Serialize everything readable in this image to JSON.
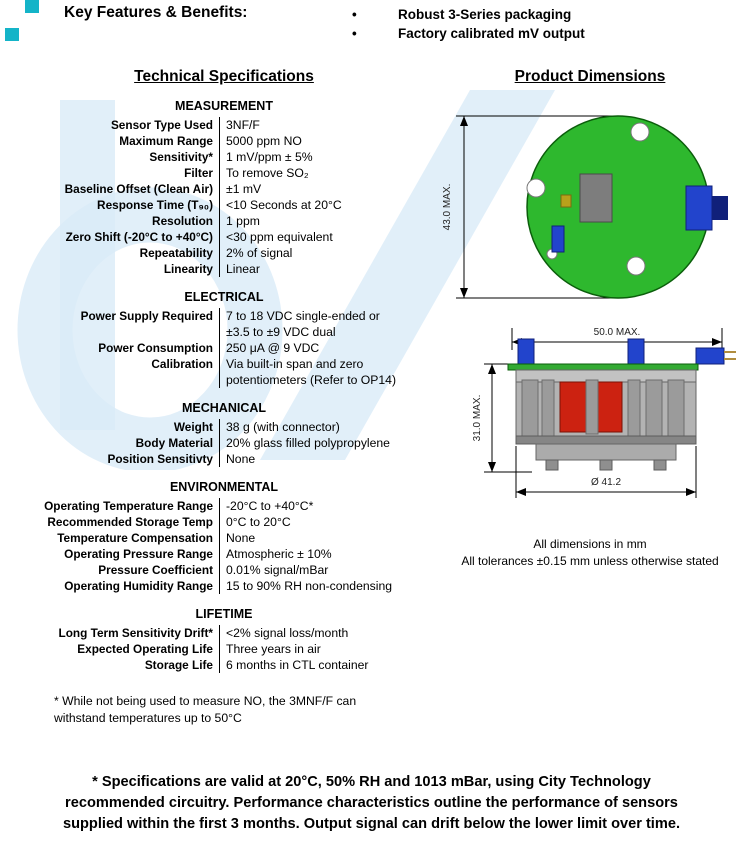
{
  "key_features": {
    "title": "Key Features & Benefits:",
    "bullets": [
      "Robust 3-Series packaging",
      "Factory calibrated mV output"
    ]
  },
  "tech_specs": {
    "title": "Technical Specifications",
    "sections": [
      {
        "heading": "MEASUREMENT",
        "rows": [
          {
            "label": "Sensor Type Used",
            "value": "3NF/F"
          },
          {
            "label": "Maximum Range",
            "value": "5000 ppm NO"
          },
          {
            "label": "Sensitivity*",
            "value": "1 mV/ppm ± 5%"
          },
          {
            "label": "Filter",
            "value": "To remove SO₂"
          },
          {
            "label": "Baseline Offset (Clean Air)",
            "value": "±1 mV"
          },
          {
            "label": "Response Time (T₉₀)",
            "value": "<10 Seconds at 20°C"
          },
          {
            "label": "Resolution",
            "value": "1 ppm"
          },
          {
            "label": "Zero Shift (-20°C to +40°C)",
            "value": "<30 ppm equivalent"
          },
          {
            "label": "Repeatability",
            "value": "2% of signal"
          },
          {
            "label": "Linearity",
            "value": "Linear"
          }
        ]
      },
      {
        "heading": "ELECTRICAL",
        "rows": [
          {
            "label": "Power Supply Required",
            "value": "7 to 18 VDC single-ended or\n±3.5 to ±9 VDC dual"
          },
          {
            "label": "Power Consumption",
            "value": "250 μA @ 9 VDC"
          },
          {
            "label": "Calibration",
            "value": "Via built-in span and zero\npotentiometers (Refer to OP14)"
          }
        ]
      },
      {
        "heading": "MECHANICAL",
        "rows": [
          {
            "label": "Weight",
            "value": "38 g (with connector)"
          },
          {
            "label": "Body Material",
            "value": "20% glass filled polypropylene"
          },
          {
            "label": "Position Sensitivty",
            "value": "None"
          }
        ]
      },
      {
        "heading": "ENVIRONMENTAL",
        "rows": [
          {
            "label": "Operating Temperature Range",
            "value": "-20°C to +40°C*"
          },
          {
            "label": "Recommended Storage Temp",
            "value": "0°C to 20°C"
          },
          {
            "label": "Temperature Compensation",
            "value": "None"
          },
          {
            "label": "Operating Pressure Range",
            "value": "Atmospheric ± 10%"
          },
          {
            "label": "Pressure Coefficient",
            "value": "0.01% signal/mBar"
          },
          {
            "label": "Operating Humidity Range",
            "value": "15 to 90% RH non-condensing"
          }
        ]
      },
      {
        "heading": "LIFETIME",
        "rows": [
          {
            "label": "Long Term Sensitivity Drift*",
            "value": "<2% signal loss/month"
          },
          {
            "label": "Expected Operating Life",
            "value": "Three years in air"
          },
          {
            "label": "Storage Life",
            "value": "6 months in CTL container"
          }
        ]
      }
    ],
    "footnote": "* While not being used to measure NO, the 3MNF/F can\nwithstand temperatures up to 50°C"
  },
  "dimensions": {
    "title": "Product Dimensions",
    "top_view_height": "43.0 MAX.",
    "side_view_width": "50.0 MAX.",
    "side_view_height": "31.0 MAX.",
    "base_diameter": "Ø 41.2",
    "notes": "All dimensions in mm\nAll tolerances ±0.15 mm unless otherwise stated"
  },
  "footer": {
    "text": "* Specifications are valid at 20°C, 50% RH and 1013 mBar, using City Technology\nrecommended circuitry. Performance characteristics outline the performance of sensors\nsupplied within the first 3 months. Output signal can drift below the lower limit over time."
  },
  "colors": {
    "accent_teal": "#14b4c8",
    "pcb_green": "#2eb82e",
    "component_blue": "#2244cc",
    "filter_red": "#cc2211",
    "watermark_blue": "#d9ebf7"
  },
  "bullet_glyph": "•"
}
